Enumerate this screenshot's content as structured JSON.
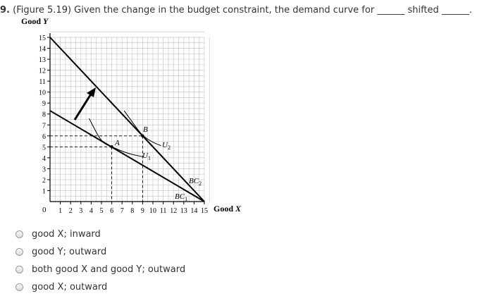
{
  "question": {
    "number": "9.",
    "text_before": "(Figure 5.19) Given the change in the budget constraint, the demand curve for",
    "blank1": "______",
    "text_middle": "shifted",
    "blank2": "______",
    "text_end": "."
  },
  "figure": {
    "ylabel_prefix": "Good ",
    "ylabel_var": "Y",
    "xlabel_prefix": "Good ",
    "xlabel_var": "X",
    "origin": "0",
    "y_ticks": [
      "15",
      "14",
      "13",
      "12",
      "11",
      "10",
      "9",
      "8",
      "7",
      "6",
      "5",
      "4",
      "3",
      "2",
      "1"
    ],
    "x_ticks": [
      "1",
      "2",
      "3",
      "4",
      "5",
      "6",
      "7",
      "8",
      "9",
      "10",
      "11",
      "12",
      "13",
      "14",
      "15"
    ],
    "point_a": "A",
    "point_b": "B",
    "u1_base": "U",
    "u1_sub": "1",
    "u2_base": "U",
    "u2_sub": "2",
    "bc1_base": "BC",
    "bc1_sub": "1",
    "bc2_base": "BC",
    "bc2_sub": "2"
  },
  "chart_data": {
    "type": "line",
    "xlabel": "Good X",
    "ylabel": "Good Y",
    "xlim": [
      0,
      15
    ],
    "ylim": [
      0,
      15
    ],
    "grid": true,
    "series": [
      {
        "name": "BC1",
        "x": [
          0,
          15
        ],
        "y": [
          8.3,
          0
        ]
      },
      {
        "name": "BC2",
        "x": [
          0,
          15
        ],
        "y": [
          15,
          0
        ]
      },
      {
        "name": "U1",
        "x": [
          3.8,
          5,
          6,
          7.5,
          9
        ],
        "y": [
          7.6,
          5.4,
          5,
          4.4,
          4.1
        ]
      },
      {
        "name": "U2",
        "x": [
          7.2,
          8.2,
          9,
          10,
          10.8
        ],
        "y": [
          8.3,
          7,
          6,
          5.4,
          5.1
        ]
      }
    ],
    "points": [
      {
        "label": "A",
        "x": 6,
        "y": 5
      },
      {
        "label": "B",
        "x": 9,
        "y": 6
      }
    ]
  },
  "options": [
    {
      "label": "good X; inward"
    },
    {
      "label": "good Y; outward"
    },
    {
      "label": "both good X and good Y; outward"
    },
    {
      "label": "good X; outward"
    }
  ]
}
